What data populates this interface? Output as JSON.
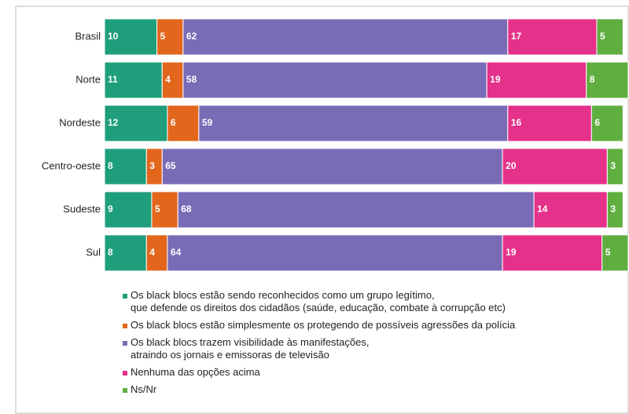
{
  "chart_data": {
    "type": "stacked-bar-horizontal",
    "categories": [
      "Brasil",
      "Norte",
      "Nordeste",
      "Centro-oeste",
      "Sudeste",
      "Sul"
    ],
    "xlim": [
      0,
      100
    ],
    "series": [
      {
        "name": "Os black blocs estão sendo reconhecidos como um grupo legítimo,\nque defende os direitos dos cidadãos (saúde, educação, combate à corrupção etc)",
        "color": "#1f9e7c",
        "values": [
          10,
          11,
          12,
          8,
          9,
          8
        ]
      },
      {
        "name": "Os black blocs estão simplesmente os protegendo de possíveis agressões da polícia",
        "color": "#e2661c",
        "values": [
          5,
          4,
          6,
          3,
          5,
          4
        ]
      },
      {
        "name": "Os black blocs trazem visibilidade às manifestações,\natraindo os jornais e emissoras de televisão",
        "color": "#7a6bb7",
        "values": [
          62,
          58,
          59,
          65,
          68,
          64
        ]
      },
      {
        "name": "Nenhuma das opções acima",
        "color": "#e53189",
        "values": [
          17,
          19,
          16,
          20,
          14,
          19
        ]
      },
      {
        "name": "Ns/Nr",
        "color": "#5fae3f",
        "values": [
          5,
          8,
          6,
          3,
          3,
          5
        ]
      }
    ]
  }
}
